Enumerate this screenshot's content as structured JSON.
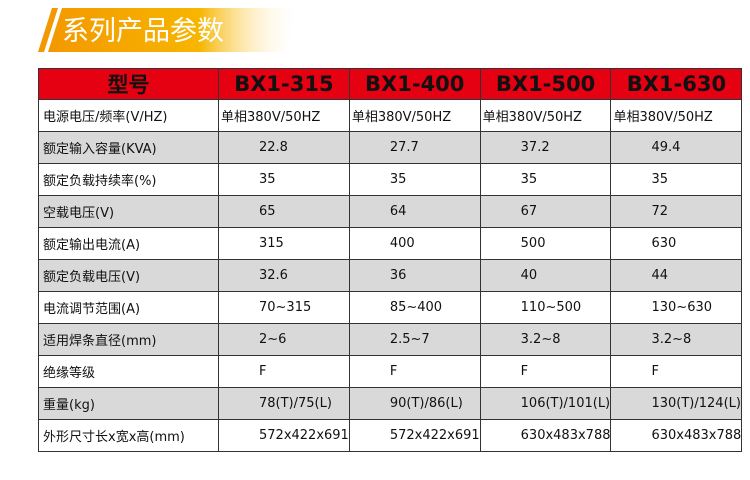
{
  "header": {
    "title": "系列产品参数"
  },
  "table": {
    "columns": [
      "型号",
      "BX1-315",
      "BX1-400",
      "BX1-500",
      "BX1-630"
    ],
    "rows": [
      [
        "电源电压/频率(V/HZ)",
        "单相380V/50HZ",
        "单相380V/50HZ",
        "单相380V/50HZ",
        "单相380V/50HZ"
      ],
      [
        "额定输入容量(KVA)",
        "22.8",
        "27.7",
        "37.2",
        "49.4"
      ],
      [
        "额定负载持续率(%)",
        "35",
        "35",
        "35",
        "35"
      ],
      [
        "空载电压(V)",
        "65",
        "64",
        "67",
        "72"
      ],
      [
        "额定输出电流(A)",
        "315",
        "400",
        "500",
        "630"
      ],
      [
        "额定负载电压(V)",
        "32.6",
        "36",
        "40",
        "44"
      ],
      [
        "电流调节范围(A)",
        "70~315",
        "85~400",
        "110~500",
        "130~630"
      ],
      [
        "适用焊条直径(mm)",
        "2~6",
        "2.5~7",
        "3.2~8",
        "3.2~8"
      ],
      [
        "绝缘等级",
        "F",
        "F",
        "F",
        "F"
      ],
      [
        "重量(kg)",
        "78(T)/75(L)",
        "90(T)/86(L)",
        "106(T)/101(L)",
        "130(T)/124(L)"
      ],
      [
        "外形尺寸长x宽x高(mm)",
        "572x422x691",
        "572x422x691",
        "630x483x788",
        "630x483x788"
      ]
    ]
  }
}
